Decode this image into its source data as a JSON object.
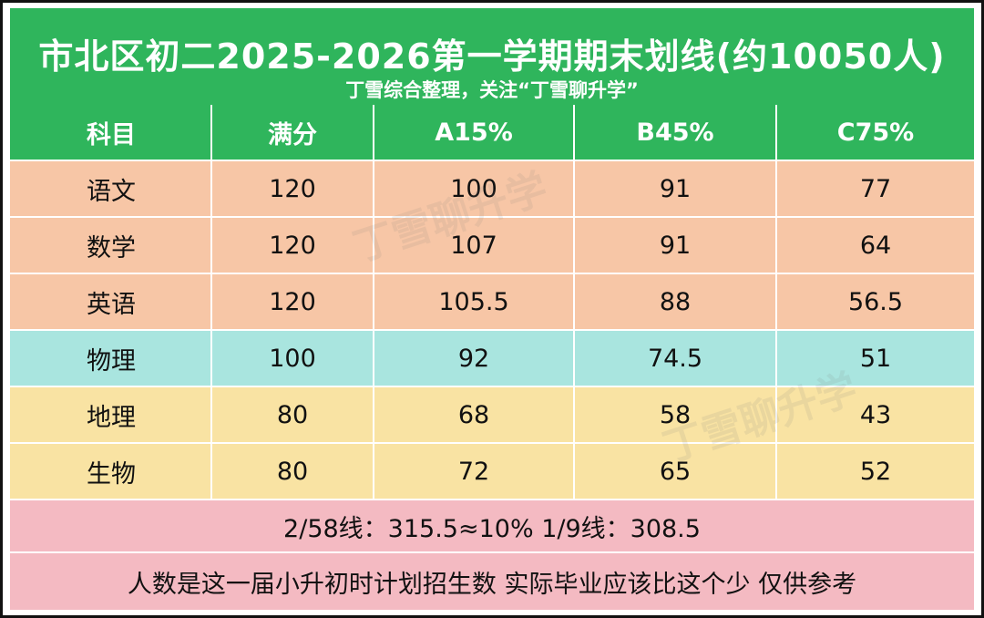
{
  "title": {
    "main": "市北区初二2025-2026第一学期期末划线(约10050人)",
    "subtitle": "丁雪综合整理，关注“丁雪聊升学”"
  },
  "table": {
    "headers": [
      "科目",
      "满分",
      "A15%",
      "B45%",
      "C75%"
    ],
    "rows": [
      {
        "cells": [
          "语文",
          "120",
          "100",
          "91",
          "77"
        ],
        "band": "orange"
      },
      {
        "cells": [
          "数学",
          "120",
          "107",
          "91",
          "64"
        ],
        "band": "orange"
      },
      {
        "cells": [
          "英语",
          "120",
          "105.5",
          "88",
          "56.5"
        ],
        "band": "orange"
      },
      {
        "cells": [
          "物理",
          "100",
          "92",
          "74.5",
          "51"
        ],
        "band": "cyan"
      },
      {
        "cells": [
          "地理",
          "80",
          "68",
          "58",
          "43"
        ],
        "band": "yellow"
      },
      {
        "cells": [
          "生物",
          "80",
          "72",
          "65",
          "52"
        ],
        "band": "yellow"
      }
    ]
  },
  "footer": {
    "line1": "2/58线：315.5≈10% 1/9线：308.5",
    "line2": "人数是这一届小升初时计划招生数 实际毕业应该比这个少 仅供参考"
  },
  "watermark": "丁雪聊升学",
  "colors": {
    "header_green": "#2fb55c",
    "orange_band": "#f7c6a6",
    "cyan_band": "#a9e5df",
    "yellow_band": "#f9e3a3",
    "pink_footer": "#f4bac2"
  }
}
